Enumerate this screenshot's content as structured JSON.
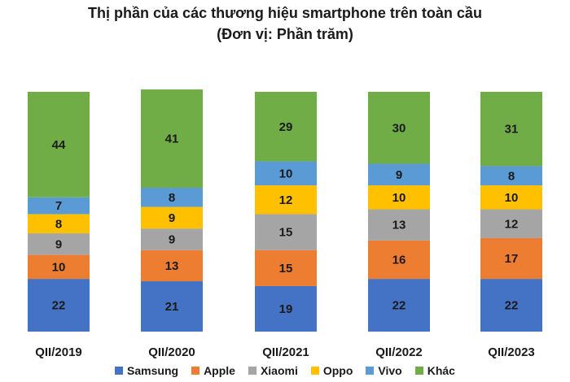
{
  "chart_data": {
    "type": "bar",
    "stacked": true,
    "title": "Thị phần của các thương hiệu smartphone trên toàn cầu",
    "subtitle": "(Đơn vị: Phần trăm)",
    "categories": [
      "QII/2019",
      "QII/2020",
      "QII/2021",
      "QII/2022",
      "QII/2023"
    ],
    "series": [
      {
        "name": "Samsung",
        "color": "#4472C4",
        "values": [
          22,
          21,
          19,
          22,
          22
        ]
      },
      {
        "name": "Apple",
        "color": "#ED7D31",
        "values": [
          10,
          13,
          15,
          16,
          17
        ]
      },
      {
        "name": "Xiaomi",
        "color": "#A5A5A5",
        "values": [
          9,
          9,
          15,
          13,
          12
        ]
      },
      {
        "name": "Oppo",
        "color": "#FFC000",
        "values": [
          8,
          9,
          12,
          10,
          10
        ]
      },
      {
        "name": "Vivo",
        "color": "#5B9BD5",
        "values": [
          7,
          8,
          10,
          9,
          8
        ]
      },
      {
        "name": "Khác",
        "color": "#70AD47",
        "values": [
          44,
          41,
          29,
          30,
          31
        ]
      }
    ],
    "ylim": [
      0,
      100
    ],
    "grid": false,
    "legend_position": "bottom"
  }
}
